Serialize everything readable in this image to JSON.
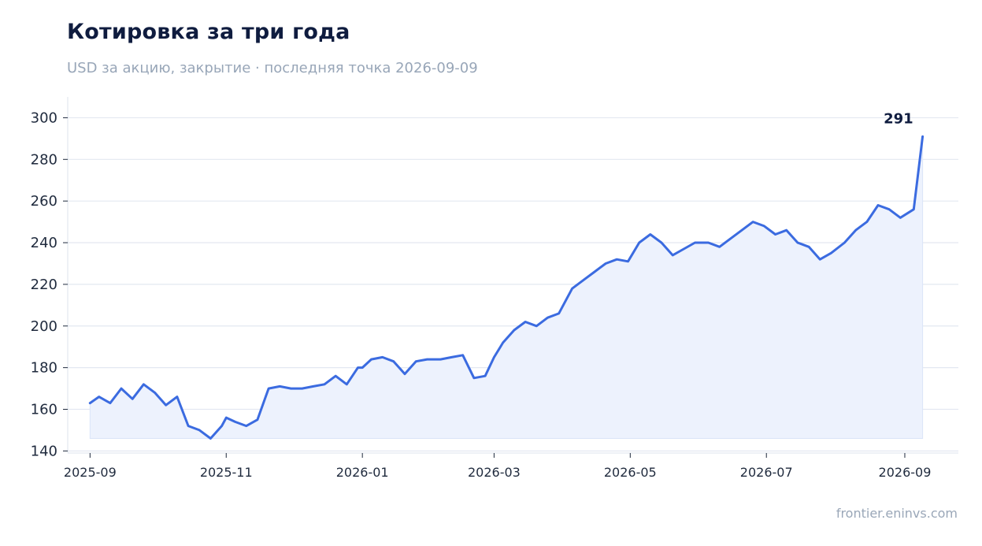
{
  "header": {
    "title": "Котировка за три года",
    "subtitle": "USD за акцию, закрытие · последняя точка 2026-09-09"
  },
  "footer": {
    "source": "frontier.eninvs.com"
  },
  "chart_data": {
    "type": "area",
    "title": "Котировка за три года",
    "subtitle": "USD за акцию, закрытие · последняя точка 2026-09-09",
    "xlabel": "",
    "ylabel": "",
    "x_ticks": [
      "2025-09",
      "2025-11",
      "2026-01",
      "2026-03",
      "2026-05",
      "2026-07",
      "2026-09"
    ],
    "y_ticks": [
      140,
      160,
      180,
      200,
      220,
      240,
      260,
      280,
      300
    ],
    "xlim": [
      "2025-08-22",
      "2026-09-25"
    ],
    "ylim": [
      139,
      310
    ],
    "grid": "horizontal",
    "last_value_label": "291",
    "colors": {
      "line": "#3b6be0",
      "fill": "#edf2fd",
      "grid": "#e3e8f1"
    },
    "series": [
      {
        "x": [
          "2025-09-01",
          "2025-09-05",
          "2025-09-10",
          "2025-09-15",
          "2025-09-20",
          "2025-09-25",
          "2025-09-30",
          "2025-10-05",
          "2025-10-10",
          "2025-10-15",
          "2025-10-20",
          "2025-10-25",
          "2025-10-30",
          "2025-11-01",
          "2025-11-05",
          "2025-11-10",
          "2025-11-15",
          "2025-11-20",
          "2025-11-25",
          "2025-11-30",
          "2025-12-05",
          "2025-12-10",
          "2025-12-15",
          "2025-12-20",
          "2025-12-25",
          "2025-12-30",
          "2026-01-01",
          "2026-01-05",
          "2026-01-10",
          "2026-01-15",
          "2026-01-20",
          "2026-01-25",
          "2026-01-30",
          "2026-02-05",
          "2026-02-10",
          "2026-02-15",
          "2026-02-20",
          "2026-02-25",
          "2026-03-01",
          "2026-03-05",
          "2026-03-10",
          "2026-03-15",
          "2026-03-20",
          "2026-03-25",
          "2026-03-30",
          "2026-04-05",
          "2026-04-10",
          "2026-04-15",
          "2026-04-20",
          "2026-04-25",
          "2026-04-30",
          "2026-05-05",
          "2026-05-10",
          "2026-05-15",
          "2026-05-20",
          "2026-05-25",
          "2026-05-30",
          "2026-06-05",
          "2026-06-10",
          "2026-06-15",
          "2026-06-20",
          "2026-06-25",
          "2026-06-30",
          "2026-07-05",
          "2026-07-10",
          "2026-07-15",
          "2026-07-20",
          "2026-07-25",
          "2026-07-30",
          "2026-08-05",
          "2026-08-10",
          "2026-08-15",
          "2026-08-20",
          "2026-08-25",
          "2026-08-30",
          "2026-09-05",
          "2026-09-09"
        ],
        "values": [
          163,
          166,
          163,
          170,
          165,
          172,
          168,
          162,
          166,
          152,
          150,
          146,
          152,
          156,
          154,
          152,
          155,
          170,
          171,
          170,
          170,
          171,
          172,
          176,
          172,
          180,
          180,
          184,
          185,
          183,
          177,
          183,
          184,
          184,
          185,
          186,
          175,
          176,
          185,
          192,
          198,
          202,
          200,
          204,
          206,
          218,
          222,
          226,
          230,
          232,
          231,
          240,
          244,
          240,
          234,
          237,
          240,
          240,
          238,
          242,
          246,
          250,
          248,
          244,
          246,
          240,
          238,
          232,
          235,
          240,
          246,
          250,
          258,
          256,
          252,
          256,
          291
        ]
      }
    ]
  }
}
